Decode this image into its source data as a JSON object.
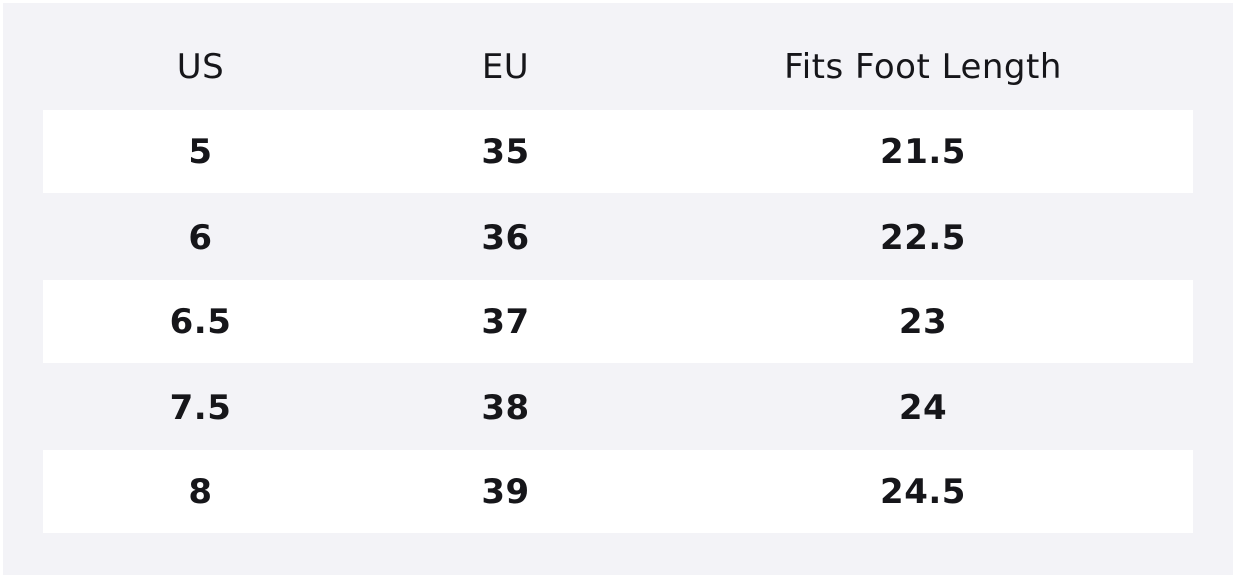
{
  "table": {
    "headers": [
      "US",
      "EU",
      "Fits Foot Length"
    ],
    "rows": [
      [
        "5",
        "35",
        "21.5"
      ],
      [
        "6",
        "36",
        "22.5"
      ],
      [
        "6.5",
        "37",
        "23"
      ],
      [
        "7.5",
        "38",
        "24"
      ],
      [
        "8",
        "39",
        "24.5"
      ]
    ]
  }
}
